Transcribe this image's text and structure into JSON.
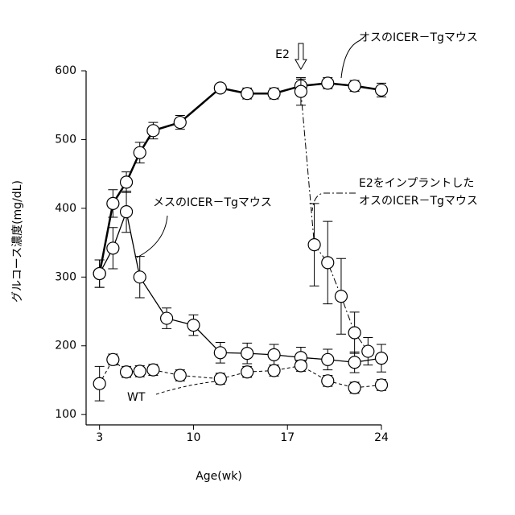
{
  "chart_data": {
    "type": "line",
    "x_label": "Age(wk)",
    "y_label": "グルコース濃度(mg/dL)",
    "xlim": [
      2,
      24
    ],
    "xticks": [
      3,
      10,
      17,
      24
    ],
    "ylim": [
      85,
      600
    ],
    "yticks": [
      100,
      200,
      300,
      400,
      500,
      600
    ],
    "series": [
      {
        "name": "オスのICER－Tgマウス",
        "color": "#000000",
        "line_style": "bold",
        "x": [
          3,
          4,
          5,
          6,
          7,
          9,
          12,
          14,
          16,
          18,
          20,
          22,
          24
        ],
        "values": [
          305,
          407,
          438,
          481,
          513,
          525,
          575,
          567,
          567,
          578,
          582,
          578,
          572
        ],
        "errors": [
          20,
          20,
          15,
          15,
          12,
          10,
          5,
          8,
          8,
          10,
          8,
          8,
          10
        ]
      },
      {
        "name": "メスのICER－Tgマウス",
        "color": "#000000",
        "line_style": "solid",
        "x": [
          3,
          4,
          5,
          6,
          8,
          10,
          12,
          14,
          16,
          18,
          20,
          22,
          24
        ],
        "values": [
          305,
          342,
          395,
          300,
          240,
          230,
          190,
          189,
          187,
          183,
          180,
          176,
          182
        ],
        "errors": [
          20,
          30,
          30,
          30,
          15,
          15,
          15,
          15,
          15,
          15,
          15,
          15,
          20
        ]
      },
      {
        "name": [
          "E2をインプラントした",
          "オスのICER－Tgマウス"
        ],
        "color": "#000000",
        "line_style": "dashdot",
        "x": [
          18,
          19,
          20,
          21,
          22,
          23
        ],
        "values": [
          570,
          347,
          321,
          272,
          219,
          192
        ],
        "errors": [
          20,
          60,
          60,
          55,
          30,
          20
        ]
      },
      {
        "name": "WT",
        "color": "#000000",
        "line_style": "dashed",
        "x": [
          3,
          4,
          5,
          6,
          7,
          9,
          12,
          14,
          16,
          18,
          20,
          22,
          24
        ],
        "values": [
          145,
          180,
          162,
          163,
          165,
          157,
          152,
          162,
          164,
          171,
          149,
          139,
          143
        ],
        "errors": [
          25,
          8,
          8,
          8,
          8,
          8,
          8,
          8,
          8,
          8,
          8,
          8,
          8
        ]
      }
    ],
    "annotations": [
      {
        "text": "E2",
        "x": 18
      }
    ]
  }
}
